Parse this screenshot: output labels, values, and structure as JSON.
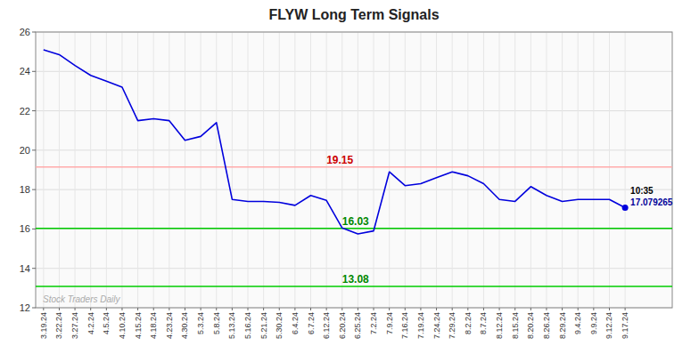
{
  "chart_data": {
    "type": "line",
    "title": "FLYW Long Term Signals",
    "color": "#0000dd",
    "categories": [
      "3.19.24",
      "3.22.24",
      "3.27.24",
      "4.2.24",
      "4.5.24",
      "4.10.24",
      "4.15.24",
      "4.18.24",
      "4.23.24",
      "4.30.24",
      "5.3.24",
      "5.8.24",
      "5.13.24",
      "5.16.24",
      "5.21.24",
      "5.30.24",
      "6.4.24",
      "6.7.24",
      "6.12.24",
      "6.20.24",
      "6.25.24",
      "7.2.24",
      "7.9.24",
      "7.16.24",
      "7.19.24",
      "7.24.24",
      "7.29.24",
      "8.2.24",
      "8.7.24",
      "8.12.24",
      "8.15.24",
      "8.20.24",
      "8.26.24",
      "8.29.24",
      "9.4.24",
      "9.9.24",
      "9.12.24",
      "9.17.24"
    ],
    "values": [
      25.1,
      24.85,
      24.3,
      23.8,
      23.5,
      23.2,
      21.5,
      21.6,
      21.5,
      20.5,
      20.7,
      21.4,
      17.5,
      17.4,
      17.4,
      17.35,
      17.2,
      17.7,
      17.45,
      16.05,
      15.75,
      15.9,
      18.9,
      18.2,
      18.3,
      18.6,
      18.9,
      18.7,
      18.3,
      17.5,
      17.4,
      18.15,
      17.7,
      17.4,
      17.5,
      17.5,
      17.5,
      17.079265
    ],
    "ylim": [
      12,
      26
    ],
    "yticks": [
      12,
      14,
      16,
      18,
      20,
      22,
      24,
      26
    ],
    "grid": true,
    "reference_lines": [
      {
        "value": 19.15,
        "label": "19.15",
        "color": "#ffaaaa",
        "label_color": "#cc0000"
      },
      {
        "value": 16.03,
        "label": "16.03",
        "color": "#00cc00",
        "label_color": "#008800"
      },
      {
        "value": 13.08,
        "label": "13.08",
        "color": "#00cc00",
        "label_color": "#008800"
      }
    ],
    "annotations": [
      {
        "text": "10:35",
        "color": "#000000"
      },
      {
        "text": "17.079265",
        "color": "#000099"
      }
    ],
    "watermark": {
      "text": "Stock Traders Daily",
      "color": "#aaaaaa"
    }
  }
}
